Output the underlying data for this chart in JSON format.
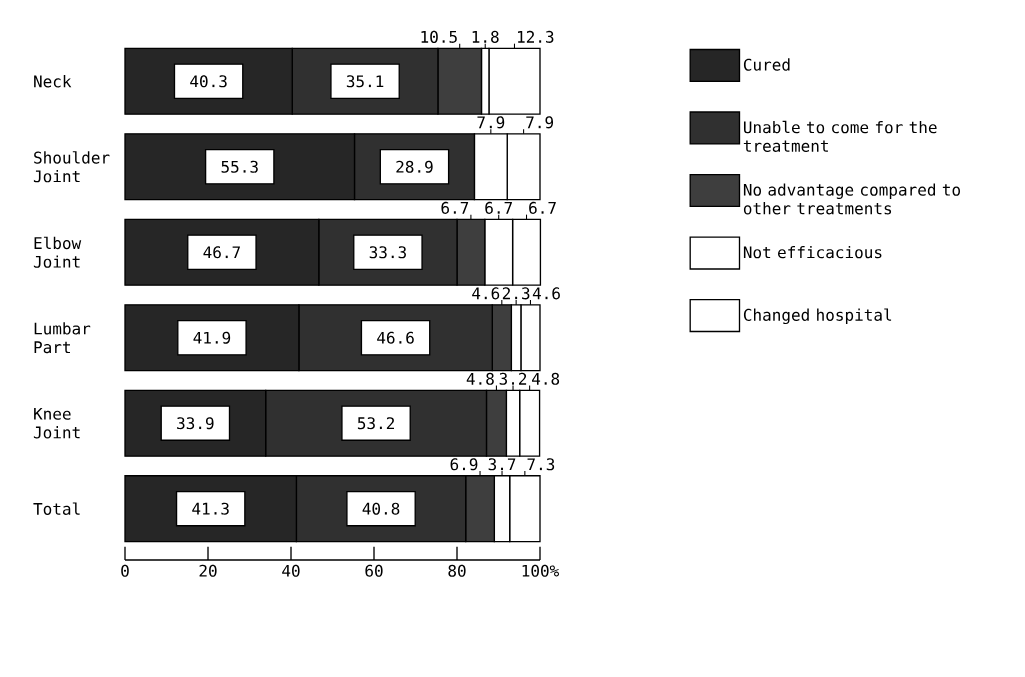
{
  "chart_data": {
    "type": "bar",
    "orientation": "horizontal",
    "stacked": true,
    "categories": [
      "Neck",
      "Shoulder Joint",
      "Elbow Joint",
      "Lumbar Part",
      "Knee Joint",
      "Total"
    ],
    "series": [
      {
        "name": "Cured",
        "color": "#262626",
        "values": [
          40.3,
          55.3,
          46.7,
          41.9,
          33.9,
          41.3
        ],
        "value_labels": [
          "40.3",
          "55.3",
          "46.7",
          "41.9",
          "33.9",
          "41.3"
        ]
      },
      {
        "name": "Unable to come for the treatment",
        "color": "#303030",
        "values": [
          35.1,
          28.9,
          33.3,
          46.6,
          53.2,
          40.8
        ],
        "value_labels": [
          "35.1",
          "28.9",
          "33.3",
          "46.6",
          "53.2",
          "40.8"
        ]
      },
      {
        "name": "No advantage compared to other treatments",
        "color": "#3e3e3e",
        "values": [
          10.5,
          0,
          6.7,
          4.6,
          4.8,
          6.9
        ],
        "value_labels": [
          "10.5",
          null,
          "6.7",
          "4.6",
          "4.8",
          "6.9"
        ]
      },
      {
        "name": "Not efficacious",
        "color": "#ffffff",
        "values": [
          1.8,
          7.9,
          6.7,
          2.3,
          3.2,
          3.7
        ],
        "value_labels": [
          "1.8",
          "7.9",
          "6.7",
          "2.3",
          "3.2",
          "3.7"
        ]
      },
      {
        "name": "Changed hospital",
        "color": "#ffffff",
        "values": [
          12.3,
          7.9,
          6.7,
          4.6,
          4.8,
          7.3
        ],
        "value_labels": [
          "12.3",
          "7.9",
          "6.7",
          "4.6",
          "4.8",
          "7.3"
        ]
      }
    ],
    "xlim": [
      0,
      100
    ],
    "xticks": [
      0,
      20,
      40,
      60,
      80,
      {
        "value": 100,
        "label": "100%"
      }
    ],
    "grid": false,
    "legend": "right"
  }
}
